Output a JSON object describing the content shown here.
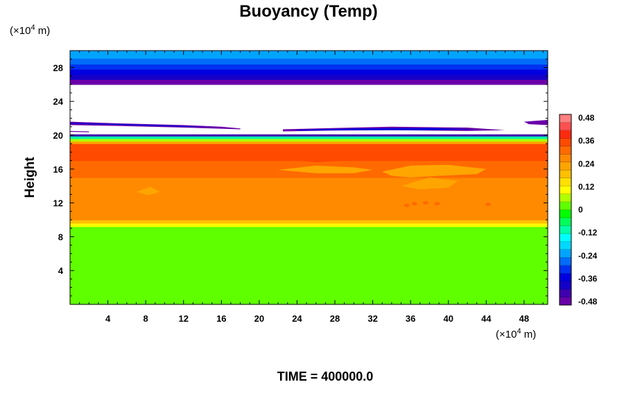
{
  "chart_data": {
    "type": "heatmap",
    "title": "Buoyancy (Temp)",
    "ylabel": "Height",
    "x_unit": {
      "base": "(×10",
      "exp": "4",
      "rest": " m)"
    },
    "y_unit": {
      "base": "(×10",
      "exp": "4",
      "rest": " m)"
    },
    "xlim": [
      0,
      50.5
    ],
    "ylim": [
      0,
      30
    ],
    "x_ticks": [
      "4",
      "8",
      "12",
      "16",
      "20",
      "24",
      "28",
      "32",
      "36",
      "40",
      "44",
      "48"
    ],
    "y_ticks": [
      "4",
      "8",
      "12",
      "16",
      "20",
      "24",
      "28"
    ],
    "colorbar": {
      "range": [
        -0.48,
        0.48
      ],
      "ticks": [
        "0.48",
        "0.36",
        "0.24",
        "0.12",
        "0",
        "-0.12",
        "-0.24",
        "-0.36",
        "-0.48"
      ]
    },
    "layers": [
      {
        "y0": 0,
        "y1": 9.2,
        "value": 0.02
      },
      {
        "y0": 9.2,
        "y1": 9.6,
        "value": 0.1
      },
      {
        "y0": 9.6,
        "y1": 10.0,
        "value": 0.18
      },
      {
        "y0": 10.0,
        "y1": 15.0,
        "value": 0.26
      },
      {
        "y0": 15.0,
        "y1": 17.0,
        "value": 0.29
      },
      {
        "y0": 17.0,
        "y1": 19.0,
        "value": 0.35
      },
      {
        "y0": 19.0,
        "y1": 19.3,
        "value": 0.2
      },
      {
        "y0": 19.3,
        "y1": 19.6,
        "value": 0.05
      },
      {
        "y0": 19.6,
        "y1": 19.9,
        "value": -0.12
      },
      {
        "y0": 19.9,
        "y1": 20.1,
        "value": -0.4
      },
      {
        "y0": 26.0,
        "y1": 26.6,
        "value": -0.44
      },
      {
        "y0": 26.6,
        "y1": 27.2,
        "value": -0.39
      },
      {
        "y0": 27.2,
        "y1": 27.8,
        "value": -0.35
      },
      {
        "y0": 27.8,
        "y1": 28.4,
        "value": -0.3
      },
      {
        "y0": 28.4,
        "y1": 29.1,
        "value": -0.26
      },
      {
        "y0": 29.1,
        "y1": 30.0,
        "value": -0.2
      }
    ],
    "time_label": "TIME = 400000.0"
  },
  "palette": [
    "#6a00a8",
    "#3f00b0",
    "#1400c8",
    "#0000e0",
    "#0030f0",
    "#006cf8",
    "#00a4ff",
    "#00d8ff",
    "#00ffff",
    "#00ffa8",
    "#00ff5a",
    "#00ff00",
    "#60ff00",
    "#b0ff00",
    "#ffff00",
    "#ffe000",
    "#ffc000",
    "#ffa500",
    "#ff8a00",
    "#ff6a00",
    "#ff4a00",
    "#ff2a10",
    "#ff5050",
    "#ff8080"
  ]
}
